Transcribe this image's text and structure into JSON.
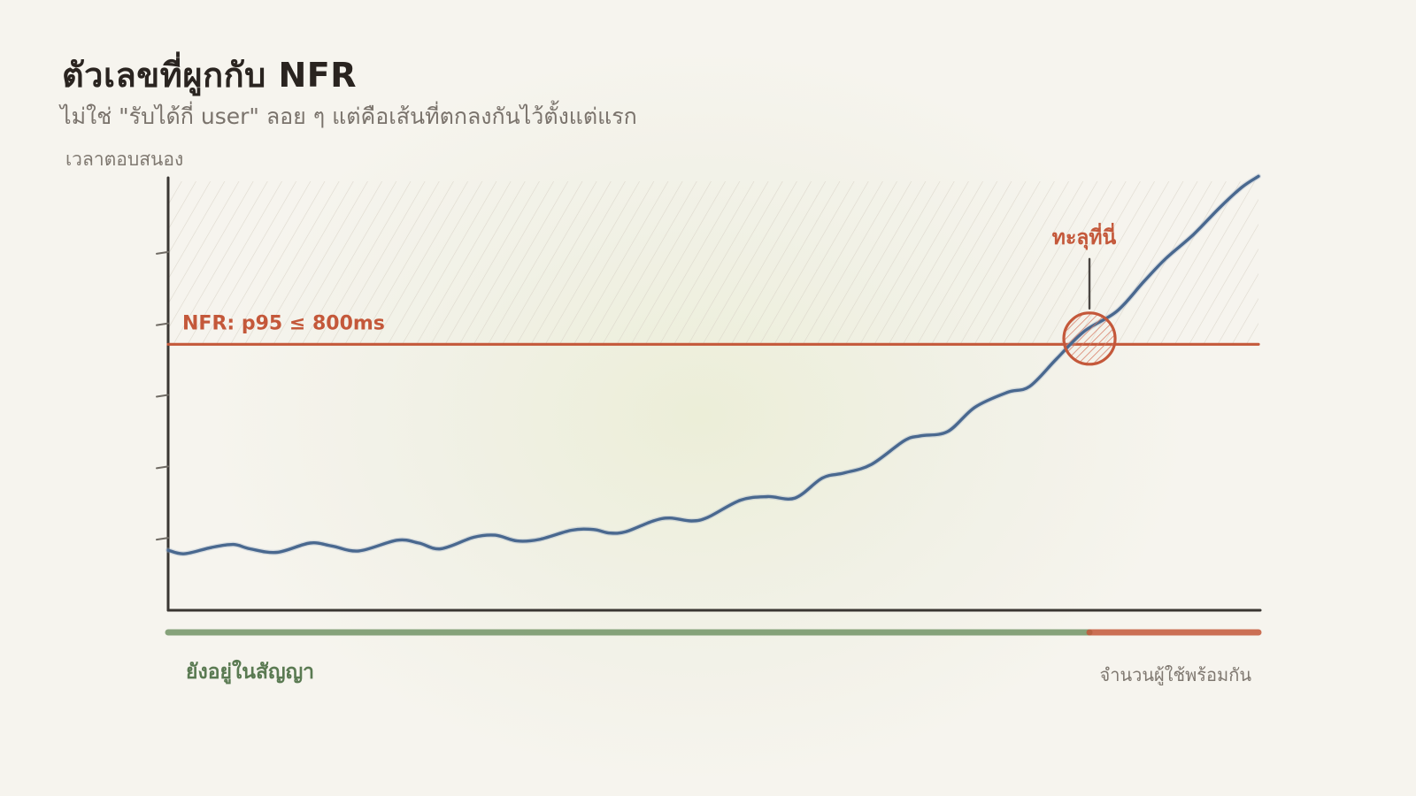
{
  "title": "ตัวเลขที่ผูกกับ NFR",
  "subtitle": "ไม่ใช่ \"รับได้กี่ user\" ลอย ๆ แต่คือเส้นที่ตกลงกันไว้ตั้งแต่แรก",
  "colors": {
    "line": "#49688f",
    "threshold": "#c4583a",
    "ok": "#7a9a6e",
    "axis": "#3a3632"
  },
  "chart_data": {
    "type": "line",
    "title": "ตัวเลขที่ผูกกับ NFR",
    "ylabel": "เวลาตอบสนอง",
    "xlabel": "จำนวนผู้ใช้พร้อมกัน",
    "xlim": [
      0,
      100
    ],
    "ylim": [
      0,
      6
    ],
    "grid": false,
    "series": [
      {
        "values": [
          [
            0,
            0.84
          ],
          [
            1.5,
            0.79
          ],
          [
            4,
            0.88
          ],
          [
            6,
            0.92
          ],
          [
            7.5,
            0.86
          ],
          [
            10,
            0.81
          ],
          [
            13,
            0.94
          ],
          [
            15,
            0.9
          ],
          [
            17.5,
            0.83
          ],
          [
            21,
            0.98
          ],
          [
            23,
            0.94
          ],
          [
            25,
            0.86
          ],
          [
            28,
            1.02
          ],
          [
            30,
            1.05
          ],
          [
            32,
            0.97
          ],
          [
            34,
            0.99
          ],
          [
            37,
            1.12
          ],
          [
            39,
            1.13
          ],
          [
            40.5,
            1.08
          ],
          [
            42,
            1.1
          ],
          [
            44.5,
            1.25
          ],
          [
            46,
            1.29
          ],
          [
            48,
            1.25
          ],
          [
            49.5,
            1.3
          ],
          [
            52.5,
            1.54
          ],
          [
            55,
            1.59
          ],
          [
            57.5,
            1.57
          ],
          [
            60,
            1.85
          ],
          [
            62,
            1.92
          ],
          [
            64.5,
            2.04
          ],
          [
            67.5,
            2.37
          ],
          [
            69,
            2.44
          ],
          [
            71.5,
            2.5
          ],
          [
            74,
            2.84
          ],
          [
            77,
            3.05
          ],
          [
            79,
            3.13
          ],
          [
            81.5,
            3.52
          ],
          [
            84,
            3.9
          ],
          [
            87,
            4.18
          ],
          [
            89.5,
            4.6
          ],
          [
            91.5,
            4.92
          ],
          [
            94,
            5.25
          ],
          [
            96.5,
            5.64
          ],
          [
            98.5,
            5.92
          ],
          [
            100,
            6.07
          ]
        ]
      }
    ],
    "threshold": {
      "label": "NFR: p95 ≤ 800ms",
      "y": 3.72
    },
    "annotation": {
      "label": "ทะลุที่นี่",
      "x": 84.5,
      "y": 3.8
    },
    "zones": [
      {
        "label": "ยังอยู่ในสัญญา",
        "from": 0,
        "to": 84.5,
        "status": "ok"
      },
      {
        "from": 84.5,
        "to": 100,
        "status": "breach"
      }
    ]
  }
}
